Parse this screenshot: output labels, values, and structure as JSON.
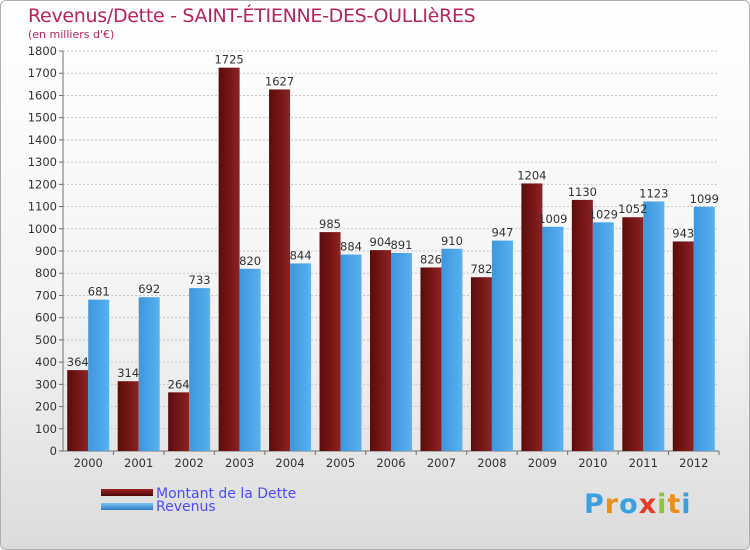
{
  "chart_data": {
    "type": "bar",
    "title": "Revenus/Dette - SAINT-ÉTIENNE-DES-OULLIèRES",
    "subtitle": "(en milliers d'€)",
    "categories": [
      "2000",
      "2001",
      "2002",
      "2003",
      "2004",
      "2005",
      "2006",
      "2007",
      "2008",
      "2009",
      "2010",
      "2011",
      "2012"
    ],
    "series": [
      {
        "name": "Montant de la Dette",
        "color": "#7b1616",
        "values": [
          364,
          314,
          264,
          1725,
          1627,
          985,
          904,
          826,
          782,
          1204,
          1130,
          1052,
          943
        ]
      },
      {
        "name": "Revenus",
        "color": "#4aa3e6",
        "values": [
          681,
          692,
          733,
          820,
          844,
          884,
          891,
          910,
          947,
          1009,
          1029,
          1123,
          1099
        ]
      }
    ],
    "ylim": [
      0,
      1800
    ],
    "yticks": [
      0,
      100,
      200,
      300,
      400,
      500,
      600,
      700,
      800,
      900,
      1000,
      1100,
      1200,
      1300,
      1400,
      1500,
      1600,
      1700,
      1800
    ],
    "grid": true,
    "legend_position": "bottom-left"
  },
  "logo": {
    "text": "Proxiti",
    "colors": [
      "#3aa0e0",
      "#e8901a",
      "#3aa0e0",
      "#e83a2a",
      "#8cc43a",
      "#e8901a",
      "#3aa0e0"
    ]
  }
}
